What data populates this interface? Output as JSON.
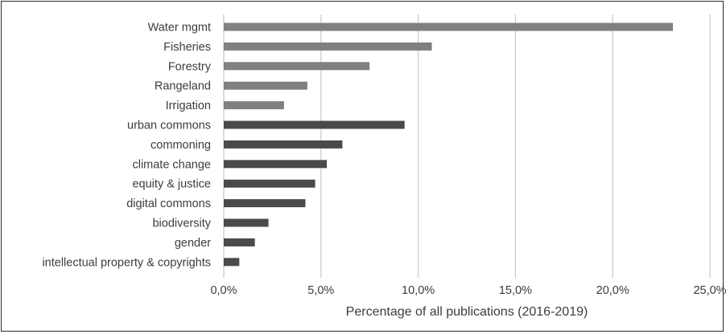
{
  "chart_data": {
    "type": "bar",
    "orientation": "horizontal",
    "title": "",
    "xlabel": "Percentage of all publications (2016-2019)",
    "ylabel": "",
    "xlim": [
      0,
      25
    ],
    "grid": true,
    "legend": "none",
    "x_ticks": [
      "0,0%",
      "5,0%",
      "10,0%",
      "15,0%",
      "20,0%",
      "25,0%"
    ],
    "categories": [
      "Water mgmt",
      "Fisheries",
      "Forestry",
      "Rangeland",
      "Irrigation",
      "urban commons",
      "commoning",
      "climate change",
      "equity & justice",
      "digital commons",
      "biodiversity",
      "gender",
      "intellectual property & copyrights"
    ],
    "values": [
      23.1,
      10.7,
      7.5,
      4.3,
      3.1,
      9.3,
      6.1,
      5.3,
      4.7,
      4.2,
      2.3,
      1.6,
      0.8
    ],
    "bar_colors": [
      "#808080",
      "#808080",
      "#808080",
      "#808080",
      "#808080",
      "#4a4a4a",
      "#4a4a4a",
      "#4a4a4a",
      "#4a4a4a",
      "#4a4a4a",
      "#4a4a4a",
      "#4a4a4a",
      "#4a4a4a"
    ],
    "gridline_color": "#c8c8c8"
  }
}
